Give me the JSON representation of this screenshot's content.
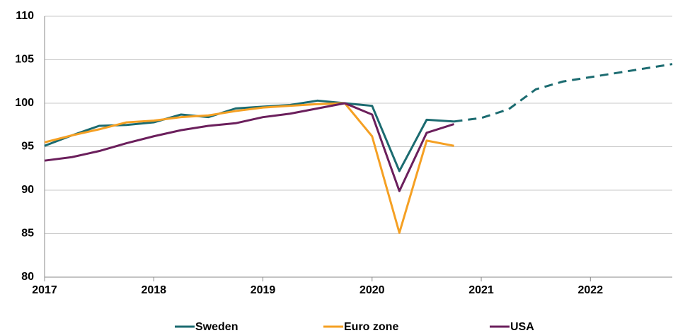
{
  "chart_data": {
    "type": "line",
    "x": [
      2017,
      2017.25,
      2017.5,
      2017.75,
      2018,
      2018.25,
      2018.5,
      2018.75,
      2019,
      2019.25,
      2019.5,
      2019.75,
      2020,
      2020.25,
      2020.5,
      2020.75,
      2021,
      2021.25,
      2021.5,
      2021.75,
      2022,
      2022.25,
      2022.5,
      2022.75
    ],
    "series": [
      {
        "name": "Sweden",
        "color": "#1b6b70",
        "dashed_from_index": 15,
        "values": [
          95.1,
          96.3,
          97.4,
          97.5,
          97.8,
          98.7,
          98.4,
          99.4,
          99.6,
          99.8,
          100.3,
          100.0,
          99.7,
          92.2,
          98.1,
          97.9,
          98.3,
          99.3,
          101.6,
          102.5,
          103.0,
          103.5,
          104.0,
          104.5
        ]
      },
      {
        "name": "Euro zone",
        "color": "#f5a023",
        "values": [
          95.5,
          96.3,
          97.0,
          97.8,
          98.0,
          98.4,
          98.6,
          99.1,
          99.5,
          99.7,
          99.9,
          100.0,
          96.2,
          85.1,
          95.7,
          95.1,
          null,
          null,
          null,
          null,
          null,
          null,
          null,
          null
        ]
      },
      {
        "name": "USA",
        "color": "#6b1f5c",
        "values": [
          93.4,
          93.8,
          94.5,
          95.4,
          96.2,
          96.9,
          97.4,
          97.7,
          98.4,
          98.8,
          99.4,
          100.0,
          98.7,
          89.9,
          96.6,
          97.6,
          null,
          null,
          null,
          null,
          null,
          null,
          null,
          null
        ]
      }
    ],
    "xlim": [
      2017,
      2022.75
    ],
    "xticks": [
      2017,
      2018,
      2019,
      2020,
      2021,
      2022
    ],
    "ylim": [
      80,
      110
    ],
    "yticks": [
      80,
      85,
      90,
      95,
      100,
      105,
      110
    ],
    "grid": true
  }
}
